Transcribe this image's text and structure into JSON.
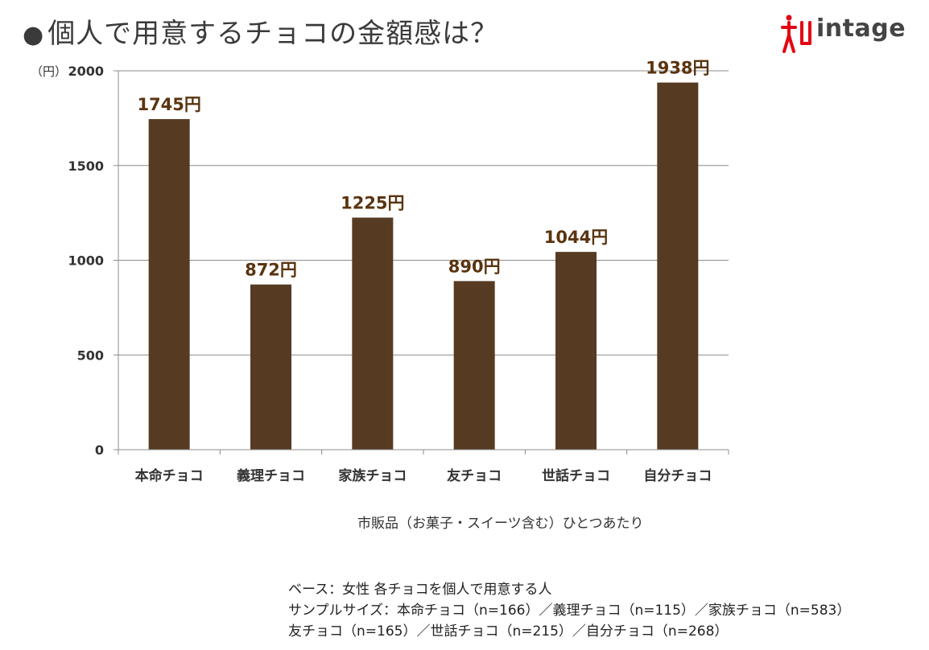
{
  "title": {
    "bullet": "●",
    "text": "個人で用意するチョコの金額感は？"
  },
  "logo": {
    "text": "intage",
    "icon": "intage-figure-icon",
    "color": "#e30613"
  },
  "chart_data": {
    "type": "bar",
    "categories": [
      "本命チョコ",
      "義理チョコ",
      "家族チョコ",
      "友チョコ",
      "世話チョコ",
      "自分チョコ"
    ],
    "values": [
      1745,
      872,
      1225,
      890,
      1044,
      1938
    ],
    "data_labels": [
      "1745円",
      "872円",
      "1225円",
      "890円",
      "1044円",
      "1938円"
    ],
    "ylim": [
      0,
      2000
    ],
    "yticks": [
      0,
      500,
      1000,
      1500,
      2000
    ],
    "y_unit": "（円）",
    "xlabel": "市販品（お菓子・スイーツ含む）ひとつあたり",
    "grid": true,
    "bar_color": "#563b22",
    "label_color": "#5a3410"
  },
  "footnote": {
    "line1": "ベース：女性 各チョコを個人で用意する人",
    "line2": "サンプルサイズ：本命チョコ（n=166）／義理チョコ（n=115）／家族チョコ（n=583）",
    "line3": "友チョコ（n=165）／世話チョコ（n=215）／自分チョコ（n=268）"
  }
}
